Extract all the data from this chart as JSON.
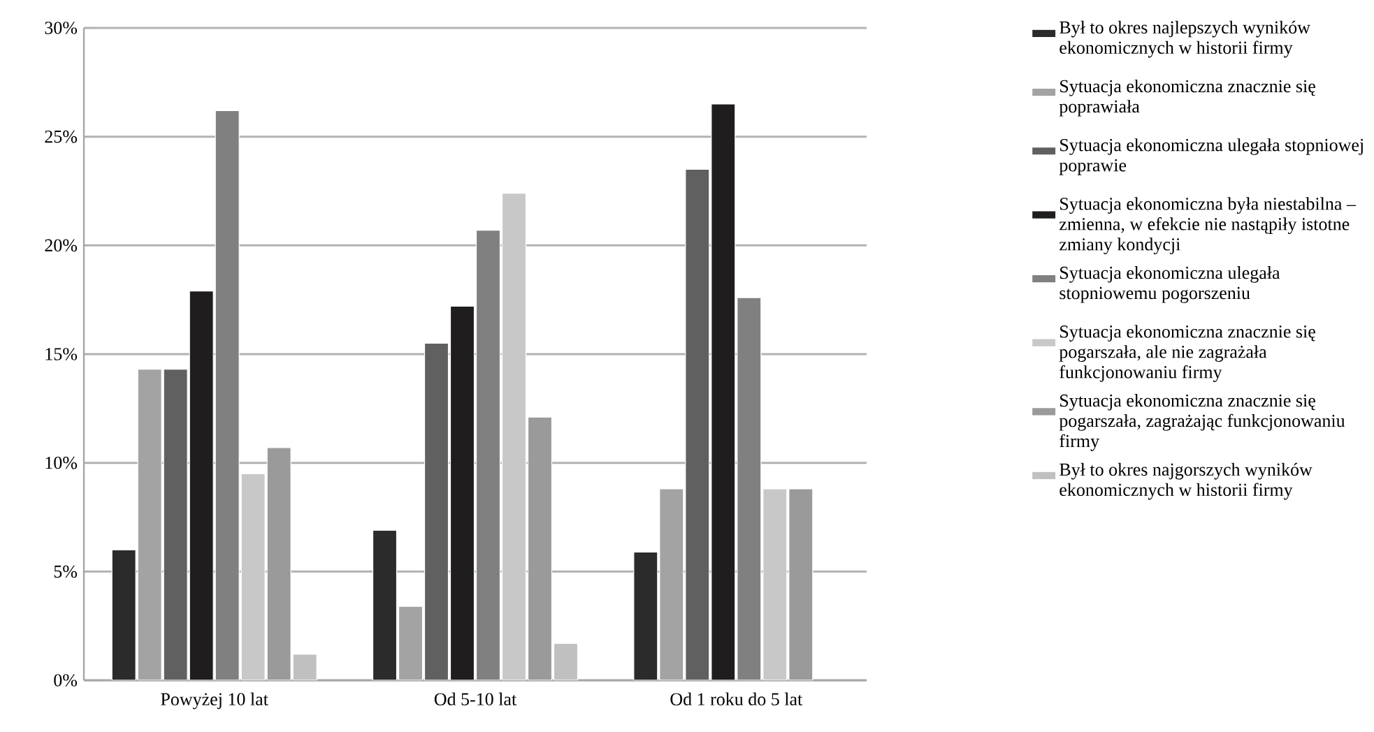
{
  "chart_data": {
    "type": "bar",
    "categories": [
      "Powyżej 10 lat",
      "Od 5-10 lat",
      "Od 1 roku do 5 lat"
    ],
    "series": [
      {
        "name": "Był to okres najlepszych wyników ekonomicznych w historii firmy",
        "color": "#2b2b2b",
        "values": [
          6.0,
          6.9,
          5.9
        ]
      },
      {
        "name": "Sytuacja ekonomiczna znacznie się poprawiała",
        "color": "#a3a3a3",
        "values": [
          14.3,
          3.4,
          8.8
        ]
      },
      {
        "name": "Sytuacja ekonomiczna ulegała stopniowej poprawie",
        "color": "#606060",
        "values": [
          14.3,
          15.5,
          23.5
        ]
      },
      {
        "name": "Sytuacja ekonomiczna była niestabilna – zmienna, w efekcie nie nastąpiły istotne zmiany kondycji",
        "color": "#1f1d1e",
        "values": [
          17.9,
          17.2,
          26.5
        ]
      },
      {
        "name": "Sytuacja ekonomiczna ulegała stopniowemu pogorszeniu",
        "color": "#808080",
        "values": [
          26.2,
          20.7,
          17.6
        ]
      },
      {
        "name": "Sytuacja ekonomiczna znacznie się pogarszała, ale nie zagrażała funkcjonowaniu firmy",
        "color": "#c8c8c8",
        "values": [
          9.5,
          22.4,
          8.8
        ]
      },
      {
        "name": "Sytuacja ekonomiczna znacznie się pogarszała, zagrażając funkcjonowaniu firmy",
        "color": "#9a9a9a",
        "values": [
          10.7,
          12.1,
          8.8
        ]
      },
      {
        "name": "Był to okres najgorszych wyników ekonomicznych w historii firmy",
        "color": "#c0c0c0",
        "values": [
          1.2,
          1.7,
          null
        ]
      }
    ],
    "ylim": [
      0,
      30
    ],
    "yticks": [
      {
        "value": 0,
        "label": "0%"
      },
      {
        "value": 5,
        "label": "5%"
      },
      {
        "value": 10,
        "label": "10%"
      },
      {
        "value": 15,
        "label": "15%"
      },
      {
        "value": 20,
        "label": "20%"
      },
      {
        "value": 25,
        "label": "25%"
      },
      {
        "value": 30,
        "label": "30%"
      }
    ],
    "grid": "y",
    "legend": "right"
  }
}
